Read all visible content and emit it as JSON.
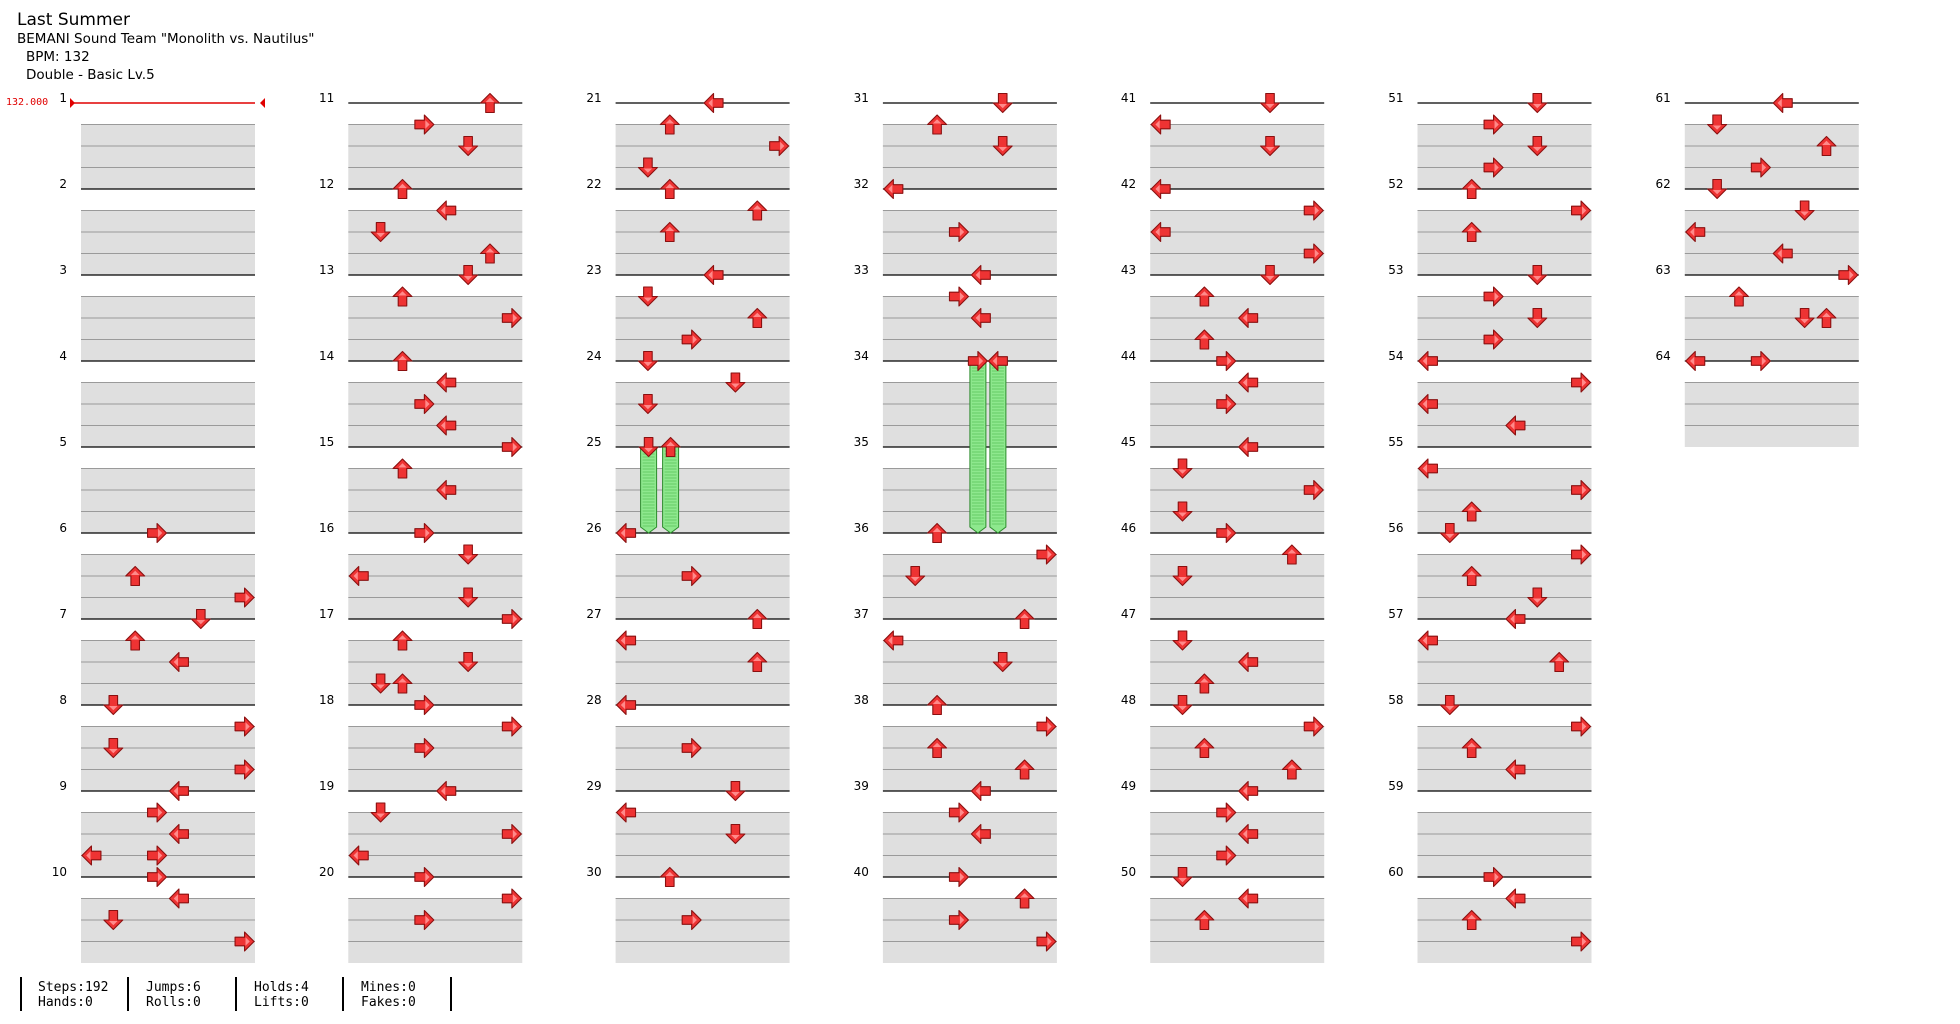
{
  "song": {
    "title": "Last Summer",
    "artist": "BEMANI Sound Team \"Monolith vs. Nautilus\"",
    "bpm": "BPM: 132",
    "difficulty": "Double - Basic Lv.5"
  },
  "bpm_marker": "132.000",
  "stats": [
    {
      "a": "Steps:192",
      "b": "Hands:0"
    },
    {
      "a": "Jumps:6",
      "b": "Rolls:0"
    },
    {
      "a": "Holds:4",
      "b": "Lifts:0"
    },
    {
      "a": "Mines:0",
      "b": "Fakes:0"
    }
  ],
  "measure_count": 64,
  "measures_per_column": 10,
  "arrows_legend": {
    "L": "left",
    "D": "down",
    "U": "up",
    "R": "right"
  },
  "colors": {
    "arrow": "#ee3333",
    "arrow_outline": "#8a1010",
    "hold": "#8ee88e",
    "hold_outline": "#2c8c2c",
    "band": "#dfdfdf",
    "bpm": "#e00000"
  },
  "notes": [
    {
      "m": 6,
      "t": 0,
      "k": "R"
    },
    {
      "m": 6,
      "t": 2,
      "k": "U"
    },
    {
      "m": 6,
      "t": 3,
      "k": "R"
    },
    {
      "m": 7,
      "t": 0,
      "k": "D"
    },
    {
      "m": 7,
      "t": 1,
      "k": "U"
    },
    {
      "m": 7,
      "t": 2,
      "k": "L"
    },
    {
      "m": 8,
      "t": 0,
      "k": "D"
    },
    {
      "m": 8,
      "t": 1,
      "k": "R"
    },
    {
      "m": 8,
      "t": 2,
      "k": "D"
    },
    {
      "m": 8,
      "t": 3,
      "k": "R"
    },
    {
      "m": 9,
      "t": 0,
      "k": "L"
    },
    {
      "m": 9,
      "t": 1,
      "k": "R"
    },
    {
      "m": 9,
      "t": 2,
      "k": "L"
    },
    {
      "m": 9,
      "t": 3,
      "k": "R"
    },
    {
      "m": 9,
      "t": 3,
      "k": "L"
    },
    {
      "m": 10,
      "t": 0,
      "k": "R"
    },
    {
      "m": 10,
      "t": 1,
      "k": "L"
    },
    {
      "m": 10,
      "t": 2,
      "k": "D"
    },
    {
      "m": 10,
      "t": 3,
      "k": "R"
    },
    {
      "m": 11,
      "t": 0,
      "k": "U"
    },
    {
      "m": 11,
      "t": 1,
      "k": "R"
    },
    {
      "m": 11,
      "t": 2,
      "k": "D"
    },
    {
      "m": 12,
      "t": 0,
      "k": "U"
    },
    {
      "m": 12,
      "t": 1,
      "k": "L"
    },
    {
      "m": 12,
      "t": 2,
      "k": "D"
    },
    {
      "m": 12,
      "t": 3,
      "k": "U"
    },
    {
      "m": 13,
      "t": 0,
      "k": "D"
    },
    {
      "m": 13,
      "t": 1,
      "k": "U"
    },
    {
      "m": 13,
      "t": 2,
      "k": "R"
    },
    {
      "m": 14,
      "t": 0,
      "k": "U"
    },
    {
      "m": 14,
      "t": 1,
      "k": "L"
    },
    {
      "m": 14,
      "t": 2,
      "k": "R"
    },
    {
      "m": 14,
      "t": 3,
      "k": "L"
    },
    {
      "m": 15,
      "t": 0,
      "k": "R"
    },
    {
      "m": 15,
      "t": 1,
      "k": "U"
    },
    {
      "m": 15,
      "t": 2,
      "k": "L"
    },
    {
      "m": 16,
      "t": 0,
      "k": "R"
    },
    {
      "m": 16,
      "t": 1,
      "k": "D"
    },
    {
      "m": 16,
      "t": 2,
      "k": "L"
    },
    {
      "m": 16,
      "t": 3,
      "k": "D"
    },
    {
      "m": 17,
      "t": 0,
      "k": "R"
    },
    {
      "m": 17,
      "t": 1,
      "k": "U"
    },
    {
      "m": 17,
      "t": 2,
      "k": "D"
    },
    {
      "m": 17,
      "t": 3,
      "k": "D"
    },
    {
      "m": 17,
      "t": 3,
      "k": "U"
    },
    {
      "m": 18,
      "t": 0,
      "k": "R"
    },
    {
      "m": 18,
      "t": 1,
      "k": "R"
    },
    {
      "m": 18,
      "t": 2,
      "k": "R"
    },
    {
      "m": 19,
      "t": 0,
      "k": "L"
    },
    {
      "m": 19,
      "t": 1,
      "k": "D"
    },
    {
      "m": 19,
      "t": 2,
      "k": "R"
    },
    {
      "m": 19,
      "t": 3,
      "k": "L"
    },
    {
      "m": 20,
      "t": 0,
      "k": "R"
    },
    {
      "m": 20,
      "t": 1,
      "k": "R"
    },
    {
      "m": 20,
      "t": 2,
      "k": "R"
    },
    {
      "m": 21,
      "t": 0,
      "k": "L"
    },
    {
      "m": 21,
      "t": 1,
      "k": "U"
    },
    {
      "m": 21,
      "t": 2,
      "k": "R"
    },
    {
      "m": 21,
      "t": 3,
      "k": "D"
    },
    {
      "m": 22,
      "t": 0,
      "k": "U"
    },
    {
      "m": 22,
      "t": 1,
      "k": "U"
    },
    {
      "m": 22,
      "t": 2,
      "k": "U"
    },
    {
      "m": 23,
      "t": 0,
      "k": "L"
    },
    {
      "m": 23,
      "t": 1,
      "k": "D"
    },
    {
      "m": 23,
      "t": 2,
      "k": "U"
    },
    {
      "m": 23,
      "t": 3,
      "k": "R"
    },
    {
      "m": 24,
      "t": 0,
      "k": "D"
    },
    {
      "m": 24,
      "t": 1,
      "k": "D"
    },
    {
      "m": 24,
      "t": 2,
      "k": "D"
    },
    {
      "m": 25,
      "t": 0,
      "k": "D"
    },
    {
      "m": 25,
      "t": 0,
      "k": "U"
    },
    {
      "m": 26,
      "t": 0,
      "k": "L"
    },
    {
      "m": 26,
      "t": 2,
      "k": "R"
    },
    {
      "m": 27,
      "t": 0,
      "k": "U"
    },
    {
      "m": 27,
      "t": 1,
      "k": "L"
    },
    {
      "m": 27,
      "t": 2,
      "k": "U"
    },
    {
      "m": 28,
      "t": 0,
      "k": "L"
    },
    {
      "m": 28,
      "t": 2,
      "k": "R"
    },
    {
      "m": 29,
      "t": 0,
      "k": "D"
    },
    {
      "m": 29,
      "t": 1,
      "k": "L"
    },
    {
      "m": 29,
      "t": 2,
      "k": "D"
    },
    {
      "m": 30,
      "t": 0,
      "k": "U"
    },
    {
      "m": 30,
      "t": 2,
      "k": "R"
    },
    {
      "m": 31,
      "t": 0,
      "k": "D"
    },
    {
      "m": 31,
      "t": 1,
      "k": "U"
    },
    {
      "m": 31,
      "t": 2,
      "k": "D"
    },
    {
      "m": 32,
      "t": 0,
      "k": "L"
    },
    {
      "m": 32,
      "t": 2,
      "k": "R"
    },
    {
      "m": 33,
      "t": 0,
      "k": "L"
    },
    {
      "m": 33,
      "t": 1,
      "k": "R"
    },
    {
      "m": 33,
      "t": 2,
      "k": "L"
    },
    {
      "m": 34,
      "t": 0,
      "k": "R"
    },
    {
      "m": 34,
      "t": 0,
      "k": "L"
    },
    {
      "m": 36,
      "t": 0,
      "k": "U"
    },
    {
      "m": 36,
      "t": 1,
      "k": "R"
    },
    {
      "m": 36,
      "t": 2,
      "k": "D"
    },
    {
      "m": 37,
      "t": 0,
      "k": "U"
    },
    {
      "m": 37,
      "t": 1,
      "k": "L"
    },
    {
      "m": 37,
      "t": 2,
      "k": "D"
    },
    {
      "m": 38,
      "t": 0,
      "k": "U"
    },
    {
      "m": 38,
      "t": 1,
      "k": "R"
    },
    {
      "m": 38,
      "t": 2,
      "k": "U"
    },
    {
      "m": 38,
      "t": 3,
      "k": "U"
    },
    {
      "m": 39,
      "t": 0,
      "k": "L"
    },
    {
      "m": 39,
      "t": 1,
      "k": "R"
    },
    {
      "m": 39,
      "t": 2,
      "k": "L"
    },
    {
      "m": 40,
      "t": 0,
      "k": "R"
    },
    {
      "m": 40,
      "t": 1,
      "k": "U"
    },
    {
      "m": 40,
      "t": 2,
      "k": "R"
    },
    {
      "m": 40,
      "t": 3,
      "k": "R"
    },
    {
      "m": 41,
      "t": 0,
      "k": "D"
    },
    {
      "m": 41,
      "t": 1,
      "k": "L"
    },
    {
      "m": 41,
      "t": 2,
      "k": "D"
    },
    {
      "m": 42,
      "t": 0,
      "k": "L"
    },
    {
      "m": 42,
      "t": 1,
      "k": "R"
    },
    {
      "m": 42,
      "t": 2,
      "k": "L"
    },
    {
      "m": 42,
      "t": 3,
      "k": "R"
    },
    {
      "m": 43,
      "t": 0,
      "k": "D"
    },
    {
      "m": 43,
      "t": 1,
      "k": "U"
    },
    {
      "m": 43,
      "t": 2,
      "k": "L"
    },
    {
      "m": 43,
      "t": 3,
      "k": "U"
    },
    {
      "m": 44,
      "t": 0,
      "k": "R"
    },
    {
      "m": 44,
      "t": 1,
      "k": "L"
    },
    {
      "m": 44,
      "t": 2,
      "k": "R"
    },
    {
      "m": 45,
      "t": 0,
      "k": "L"
    },
    {
      "m": 45,
      "t": 1,
      "k": "D"
    },
    {
      "m": 45,
      "t": 2,
      "k": "R"
    },
    {
      "m": 45,
      "t": 3,
      "k": "D"
    },
    {
      "m": 46,
      "t": 0,
      "k": "R"
    },
    {
      "m": 46,
      "t": 1,
      "k": "U"
    },
    {
      "m": 46,
      "t": 2,
      "k": "D"
    },
    {
      "m": 47,
      "t": 1,
      "k": "D"
    },
    {
      "m": 47,
      "t": 2,
      "k": "L"
    },
    {
      "m": 47,
      "t": 3,
      "k": "U"
    },
    {
      "m": 48,
      "t": 0,
      "k": "D"
    },
    {
      "m": 48,
      "t": 1,
      "k": "R"
    },
    {
      "m": 48,
      "t": 2,
      "k": "U"
    },
    {
      "m": 48,
      "t": 3,
      "k": "U"
    },
    {
      "m": 49,
      "t": 0,
      "k": "L"
    },
    {
      "m": 49,
      "t": 1,
      "k": "R"
    },
    {
      "m": 49,
      "t": 2,
      "k": "L"
    },
    {
      "m": 49,
      "t": 3,
      "k": "R"
    },
    {
      "m": 50,
      "t": 0,
      "k": "D"
    },
    {
      "m": 50,
      "t": 1,
      "k": "L"
    },
    {
      "m": 50,
      "t": 2,
      "k": "U"
    },
    {
      "m": 51,
      "t": 0,
      "k": "D"
    },
    {
      "m": 51,
      "t": 1,
      "k": "R"
    },
    {
      "m": 51,
      "t": 2,
      "k": "D"
    },
    {
      "m": 51,
      "t": 3,
      "k": "R"
    },
    {
      "m": 52,
      "t": 0,
      "k": "U"
    },
    {
      "m": 52,
      "t": 1,
      "k": "R"
    },
    {
      "m": 52,
      "t": 2,
      "k": "U"
    },
    {
      "m": 53,
      "t": 0,
      "k": "D"
    },
    {
      "m": 53,
      "t": 1,
      "k": "R"
    },
    {
      "m": 53,
      "t": 2,
      "k": "D"
    },
    {
      "m": 53,
      "t": 3,
      "k": "R"
    },
    {
      "m": 54,
      "t": 0,
      "k": "L"
    },
    {
      "m": 54,
      "t": 1,
      "k": "R"
    },
    {
      "m": 54,
      "t": 2,
      "k": "L"
    },
    {
      "m": 54,
      "t": 3,
      "k": "L"
    },
    {
      "m": 55,
      "t": 1,
      "k": "L"
    },
    {
      "m": 55,
      "t": 2,
      "k": "R"
    },
    {
      "m": 55,
      "t": 3,
      "k": "U"
    },
    {
      "m": 56,
      "t": 0,
      "k": "D"
    },
    {
      "m": 56,
      "t": 1,
      "k": "R"
    },
    {
      "m": 56,
      "t": 2,
      "k": "U"
    },
    {
      "m": 56,
      "t": 3,
      "k": "D"
    },
    {
      "m": 57,
      "t": 0,
      "k": "L"
    },
    {
      "m": 57,
      "t": 1,
      "k": "L"
    },
    {
      "m": 57,
      "t": 2,
      "k": "U"
    },
    {
      "m": 58,
      "t": 0,
      "k": "D"
    },
    {
      "m": 58,
      "t": 1,
      "k": "R"
    },
    {
      "m": 58,
      "t": 2,
      "k": "U"
    },
    {
      "m": 58,
      "t": 3,
      "k": "L"
    },
    {
      "m": 60,
      "t": 0,
      "k": "R"
    },
    {
      "m": 60,
      "t": 1,
      "k": "L"
    },
    {
      "m": 60,
      "t": 2,
      "k": "U"
    },
    {
      "m": 60,
      "t": 3,
      "k": "R"
    },
    {
      "m": 61,
      "t": 0,
      "k": "L"
    },
    {
      "m": 61,
      "t": 1,
      "k": "D"
    },
    {
      "m": 61,
      "t": 2,
      "k": "U"
    },
    {
      "m": 61,
      "t": 3,
      "k": "R"
    },
    {
      "m": 62,
      "t": 0,
      "k": "D"
    },
    {
      "m": 62,
      "t": 1,
      "k": "D"
    },
    {
      "m": 62,
      "t": 2,
      "k": "L"
    },
    {
      "m": 62,
      "t": 3,
      "k": "L"
    },
    {
      "m": 63,
      "t": 0,
      "k": "R"
    },
    {
      "m": 63,
      "t": 1,
      "k": "U"
    },
    {
      "m": 63,
      "t": 2,
      "k": "D"
    },
    {
      "m": 63,
      "t": 2,
      "k": "U"
    },
    {
      "m": 64,
      "t": 0,
      "k": "L"
    },
    {
      "m": 64,
      "t": 0,
      "k": "R"
    }
  ],
  "holds": [
    {
      "m": 25,
      "t": 0,
      "len": 4,
      "k": "D"
    },
    {
      "m": 25,
      "t": 0,
      "len": 4,
      "k": "U"
    },
    {
      "m": 34,
      "t": 0,
      "len": 8,
      "k": "R"
    },
    {
      "m": 34,
      "t": 0,
      "len": 8,
      "k": "L"
    }
  ]
}
